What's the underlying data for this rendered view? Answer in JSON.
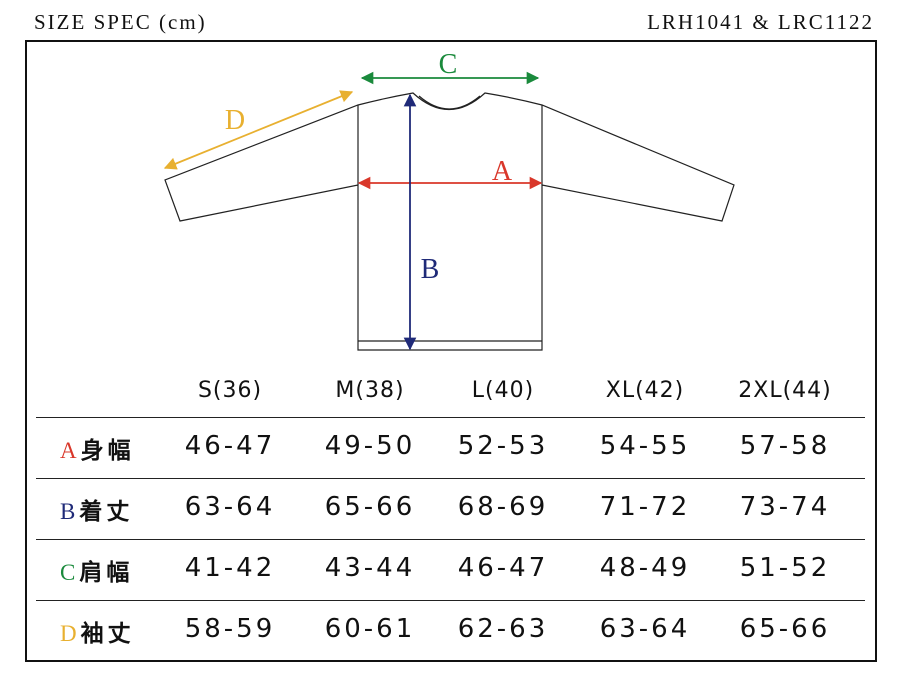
{
  "header": {
    "title": "SIZE SPEC (cm)",
    "code": "LRH1041 & LRC1122"
  },
  "diagram": {
    "labels": [
      "A",
      "B",
      "C",
      "D"
    ]
  },
  "table": {
    "columns": [
      "S(36)",
      "M(38)",
      "L(40)",
      "XL(42)",
      "2XL(44)"
    ],
    "rows": [
      {
        "letter": "A",
        "name": "身幅",
        "values": [
          "46-47",
          "49-50",
          "52-53",
          "54-55",
          "57-58"
        ]
      },
      {
        "letter": "B",
        "name": "着丈",
        "values": [
          "63-64",
          "65-66",
          "68-69",
          "71-72",
          "73-74"
        ]
      },
      {
        "letter": "C",
        "name": "肩幅",
        "values": [
          "41-42",
          "43-44",
          "46-47",
          "48-49",
          "51-52"
        ]
      },
      {
        "letter": "D",
        "name": "袖丈",
        "values": [
          "58-59",
          "60-61",
          "62-63",
          "63-64",
          "65-66"
        ]
      }
    ]
  }
}
